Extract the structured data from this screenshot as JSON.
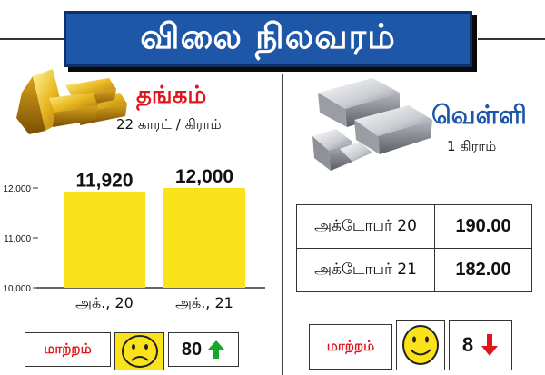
{
  "header": {
    "title": "விலை நிலவரம்"
  },
  "gold": {
    "name": "தங்கம்",
    "unit": "22 காரட் / கிராம்",
    "change": {
      "label": "மாற்றம்",
      "mood": "sad",
      "value": "80",
      "direction": "up",
      "arrow_color": "#1aa62a"
    }
  },
  "chart_data": {
    "type": "bar",
    "categories": [
      "அக்., 20",
      "அக்., 21"
    ],
    "values": [
      11920,
      12000
    ],
    "value_labels": [
      "11,920",
      "12,000"
    ],
    "ylim": [
      10000,
      12200
    ],
    "yticks": [
      10000,
      11000,
      12000
    ],
    "ytick_labels": [
      "10,000",
      "11,000",
      "12,000"
    ],
    "bar_color": "#fbe31c",
    "grid": false,
    "title": "",
    "xlabel": "",
    "ylabel": ""
  },
  "silver": {
    "name": "வெள்ளி",
    "unit": "1 கிராம்",
    "rows": [
      {
        "date": "அக்டோபர் 20",
        "price": "190.00"
      },
      {
        "date": "அக்டோபர் 21",
        "price": "182.00"
      }
    ],
    "change": {
      "label": "மாற்றம்",
      "mood": "happy",
      "value": "8",
      "direction": "down",
      "arrow_color": "#e0151c"
    }
  },
  "colors": {
    "title_bg": "#1e56a8",
    "gold_name": "#e0151c",
    "silver_name": "#1e56a8",
    "smiley_fill": "#fbe31c"
  }
}
